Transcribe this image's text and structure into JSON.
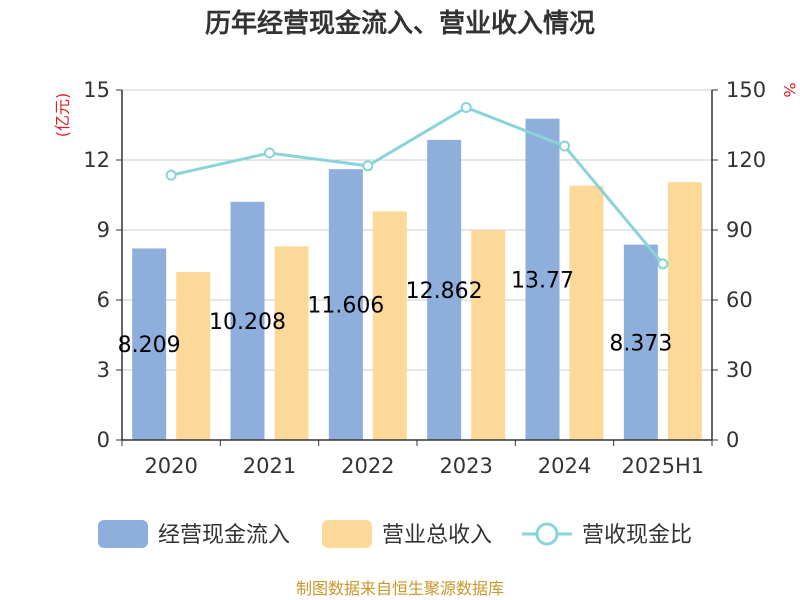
{
  "chart_data": {
    "type": "bar",
    "title": "历年经营现金流入、营业收入情况",
    "categories": [
      "2020",
      "2021",
      "2022",
      "2023",
      "2024",
      "2025H1"
    ],
    "series": [
      {
        "name": "经营现金流入",
        "type": "bar",
        "axis": "left",
        "color": "#8eaedb",
        "values": [
          8.209,
          10.208,
          11.606,
          12.862,
          13.77,
          8.373
        ],
        "labels": [
          "8.209",
          "10.208",
          "11.606",
          "12.862",
          "13.77",
          "8.373"
        ]
      },
      {
        "name": "营业总收入",
        "type": "bar",
        "axis": "left",
        "color": "#fdd999",
        "values": [
          7.2,
          8.3,
          9.8,
          9.0,
          10.9,
          11.05
        ]
      },
      {
        "name": "营收现金比",
        "type": "line",
        "axis": "right",
        "color": "#88d4d8",
        "values": [
          113.5,
          123,
          117.5,
          142.5,
          126,
          75.5
        ]
      }
    ],
    "y_left": {
      "unit": "(亿元)",
      "ylim": [
        0,
        15
      ],
      "ticks": [
        "0",
        "3",
        "6",
        "9",
        "12",
        "15"
      ]
    },
    "y_right": {
      "unit": "%",
      "ylim": [
        0,
        150
      ],
      "ticks": [
        "0",
        "30",
        "60",
        "90",
        "120",
        "150"
      ]
    },
    "grid": true,
    "legend": "bottom"
  },
  "source": "制图数据来自恒生聚源数据库"
}
